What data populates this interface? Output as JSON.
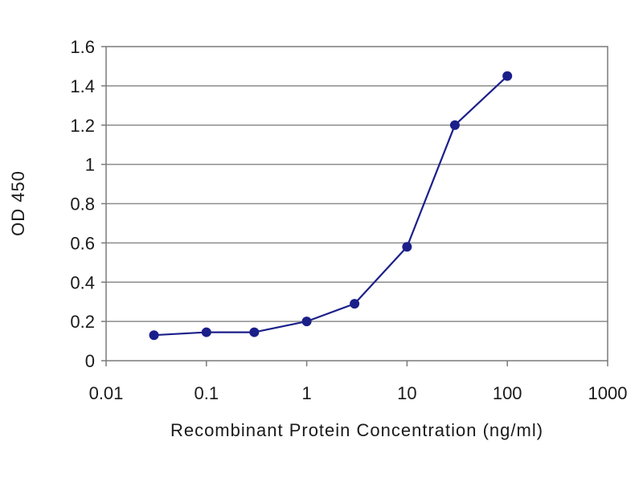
{
  "chart_data": {
    "type": "line",
    "title": "",
    "xlabel": "Recombinant Protein Concentration (ng/ml)",
    "ylabel": "OD 450",
    "x_scale": "log",
    "xlim": [
      0.01,
      1000
    ],
    "ylim": [
      0,
      1.6
    ],
    "x_ticks": [
      0.01,
      0.1,
      1,
      10,
      100,
      1000
    ],
    "x_tick_labels": [
      "0.01",
      "0.1",
      "1",
      "10",
      "100",
      "1000"
    ],
    "y_ticks": [
      0,
      0.2,
      0.4,
      0.6,
      0.8,
      1,
      1.2,
      1.4,
      1.6
    ],
    "y_tick_labels": [
      "0",
      "0.2",
      "0.4",
      "0.6",
      "0.8",
      "1",
      "1.2",
      "1.4",
      "1.6"
    ],
    "grid": "horizontal",
    "legend": "none",
    "colors": {
      "series": "#1b1f8a",
      "grid": "#8c8c8c",
      "frame": "#7a7a7a"
    },
    "series": [
      {
        "x": [
          0.03,
          0.1,
          0.3,
          1,
          3,
          10,
          30,
          100
        ],
        "y": [
          0.13,
          0.145,
          0.145,
          0.2,
          0.29,
          0.58,
          1.2,
          1.45
        ]
      }
    ]
  }
}
